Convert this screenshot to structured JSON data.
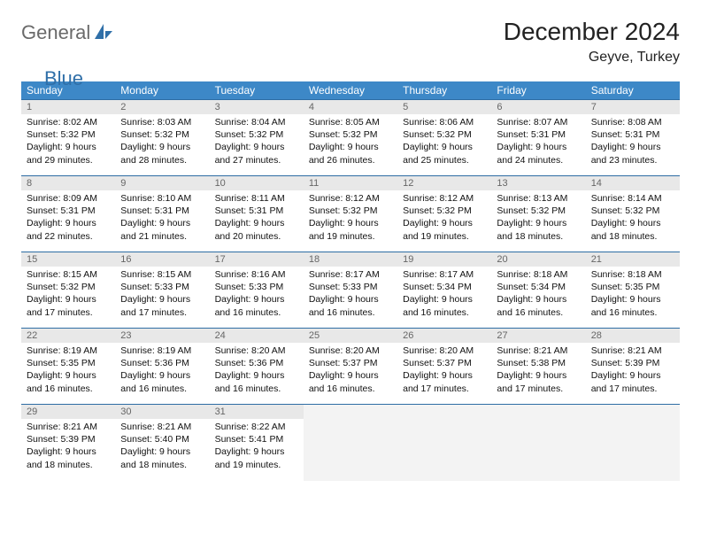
{
  "logo": {
    "text1": "General",
    "text2": "Blue"
  },
  "title": "December 2024",
  "location": "Geyve, Turkey",
  "header_bg": "#3d88c7",
  "header_fg": "#ffffff",
  "daynum_bg": "#e8e8e8",
  "rule_color": "#2e6da4",
  "weekdays": [
    "Sunday",
    "Monday",
    "Tuesday",
    "Wednesday",
    "Thursday",
    "Friday",
    "Saturday"
  ],
  "weeks": [
    [
      {
        "n": 1,
        "sr": "8:02 AM",
        "ss": "5:32 PM",
        "dlh": 9,
        "dlm": 29
      },
      {
        "n": 2,
        "sr": "8:03 AM",
        "ss": "5:32 PM",
        "dlh": 9,
        "dlm": 28
      },
      {
        "n": 3,
        "sr": "8:04 AM",
        "ss": "5:32 PM",
        "dlh": 9,
        "dlm": 27
      },
      {
        "n": 4,
        "sr": "8:05 AM",
        "ss": "5:32 PM",
        "dlh": 9,
        "dlm": 26
      },
      {
        "n": 5,
        "sr": "8:06 AM",
        "ss": "5:32 PM",
        "dlh": 9,
        "dlm": 25
      },
      {
        "n": 6,
        "sr": "8:07 AM",
        "ss": "5:31 PM",
        "dlh": 9,
        "dlm": 24
      },
      {
        "n": 7,
        "sr": "8:08 AM",
        "ss": "5:31 PM",
        "dlh": 9,
        "dlm": 23
      }
    ],
    [
      {
        "n": 8,
        "sr": "8:09 AM",
        "ss": "5:31 PM",
        "dlh": 9,
        "dlm": 22
      },
      {
        "n": 9,
        "sr": "8:10 AM",
        "ss": "5:31 PM",
        "dlh": 9,
        "dlm": 21
      },
      {
        "n": 10,
        "sr": "8:11 AM",
        "ss": "5:31 PM",
        "dlh": 9,
        "dlm": 20
      },
      {
        "n": 11,
        "sr": "8:12 AM",
        "ss": "5:32 PM",
        "dlh": 9,
        "dlm": 19
      },
      {
        "n": 12,
        "sr": "8:12 AM",
        "ss": "5:32 PM",
        "dlh": 9,
        "dlm": 19
      },
      {
        "n": 13,
        "sr": "8:13 AM",
        "ss": "5:32 PM",
        "dlh": 9,
        "dlm": 18
      },
      {
        "n": 14,
        "sr": "8:14 AM",
        "ss": "5:32 PM",
        "dlh": 9,
        "dlm": 18
      }
    ],
    [
      {
        "n": 15,
        "sr": "8:15 AM",
        "ss": "5:32 PM",
        "dlh": 9,
        "dlm": 17
      },
      {
        "n": 16,
        "sr": "8:15 AM",
        "ss": "5:33 PM",
        "dlh": 9,
        "dlm": 17
      },
      {
        "n": 17,
        "sr": "8:16 AM",
        "ss": "5:33 PM",
        "dlh": 9,
        "dlm": 16
      },
      {
        "n": 18,
        "sr": "8:17 AM",
        "ss": "5:33 PM",
        "dlh": 9,
        "dlm": 16
      },
      {
        "n": 19,
        "sr": "8:17 AM",
        "ss": "5:34 PM",
        "dlh": 9,
        "dlm": 16
      },
      {
        "n": 20,
        "sr": "8:18 AM",
        "ss": "5:34 PM",
        "dlh": 9,
        "dlm": 16
      },
      {
        "n": 21,
        "sr": "8:18 AM",
        "ss": "5:35 PM",
        "dlh": 9,
        "dlm": 16
      }
    ],
    [
      {
        "n": 22,
        "sr": "8:19 AM",
        "ss": "5:35 PM",
        "dlh": 9,
        "dlm": 16
      },
      {
        "n": 23,
        "sr": "8:19 AM",
        "ss": "5:36 PM",
        "dlh": 9,
        "dlm": 16
      },
      {
        "n": 24,
        "sr": "8:20 AM",
        "ss": "5:36 PM",
        "dlh": 9,
        "dlm": 16
      },
      {
        "n": 25,
        "sr": "8:20 AM",
        "ss": "5:37 PM",
        "dlh": 9,
        "dlm": 16
      },
      {
        "n": 26,
        "sr": "8:20 AM",
        "ss": "5:37 PM",
        "dlh": 9,
        "dlm": 17
      },
      {
        "n": 27,
        "sr": "8:21 AM",
        "ss": "5:38 PM",
        "dlh": 9,
        "dlm": 17
      },
      {
        "n": 28,
        "sr": "8:21 AM",
        "ss": "5:39 PM",
        "dlh": 9,
        "dlm": 17
      }
    ],
    [
      {
        "n": 29,
        "sr": "8:21 AM",
        "ss": "5:39 PM",
        "dlh": 9,
        "dlm": 18
      },
      {
        "n": 30,
        "sr": "8:21 AM",
        "ss": "5:40 PM",
        "dlh": 9,
        "dlm": 18
      },
      {
        "n": 31,
        "sr": "8:22 AM",
        "ss": "5:41 PM",
        "dlh": 9,
        "dlm": 19
      },
      null,
      null,
      null,
      null
    ]
  ],
  "labels": {
    "sunrise": "Sunrise:",
    "sunset": "Sunset:",
    "daylight": "Daylight:",
    "hours": "hours",
    "and": "and",
    "minutes": "minutes."
  }
}
